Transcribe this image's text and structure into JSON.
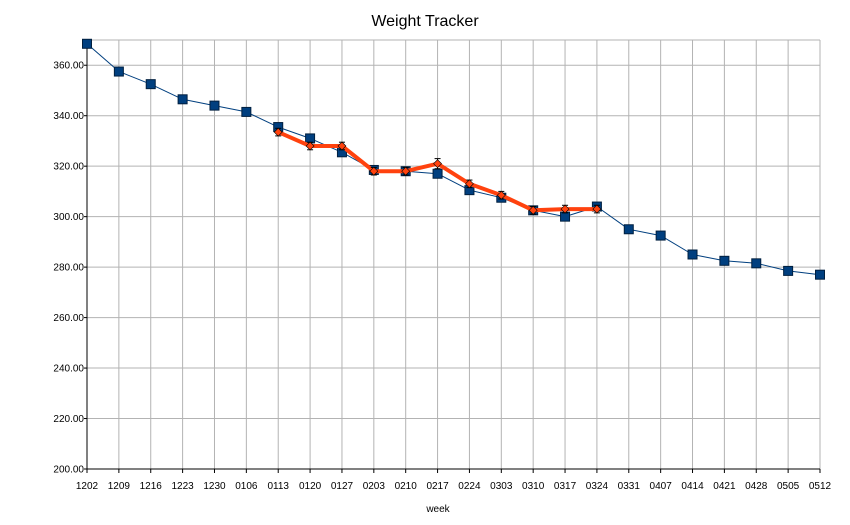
{
  "chart_data": {
    "type": "line",
    "title": "Weight Tracker",
    "xlabel": "week",
    "ylabel": "",
    "ylim": [
      200,
      370
    ],
    "yticks": [
      "200.00",
      "220.00",
      "240.00",
      "260.00",
      "280.00",
      "300.00",
      "320.00",
      "340.00",
      "360.00"
    ],
    "categories": [
      "1202",
      "1209",
      "1216",
      "1223",
      "1230",
      "0106",
      "0113",
      "0120",
      "0127",
      "0203",
      "0210",
      "0217",
      "0224",
      "0303",
      "0310",
      "0317",
      "0324",
      "0331",
      "0407",
      "0414",
      "0421",
      "0428",
      "0505",
      "0512"
    ],
    "grid": true,
    "legend": "none",
    "series": [
      {
        "values": [
          368.5,
          357.5,
          352.5,
          346.5,
          344.0,
          341.5,
          335.5,
          331.0,
          325.5,
          318.5,
          318.0,
          317.0,
          310.5,
          307.5,
          302.5,
          300.0,
          304.0,
          295.0,
          292.5,
          285.0,
          282.5,
          281.5,
          278.5,
          277.0
        ],
        "color": "#003f7f",
        "marker": "square"
      },
      {
        "values": [
          null,
          null,
          null,
          null,
          null,
          null,
          333.5,
          328.0,
          328.0,
          318.0,
          318.0,
          321.0,
          313.0,
          308.5,
          302.5,
          303.0,
          303.0,
          null,
          null,
          null,
          null,
          null,
          null,
          null
        ],
        "errors": [
          null,
          null,
          null,
          null,
          null,
          null,
          1.5,
          1.5,
          1.5,
          1.5,
          1.5,
          2.0,
          1.5,
          1.5,
          1.5,
          1.5,
          1.5,
          null,
          null,
          null,
          null,
          null,
          null,
          null
        ],
        "color": "#ff420e",
        "marker": "diamond"
      }
    ]
  }
}
